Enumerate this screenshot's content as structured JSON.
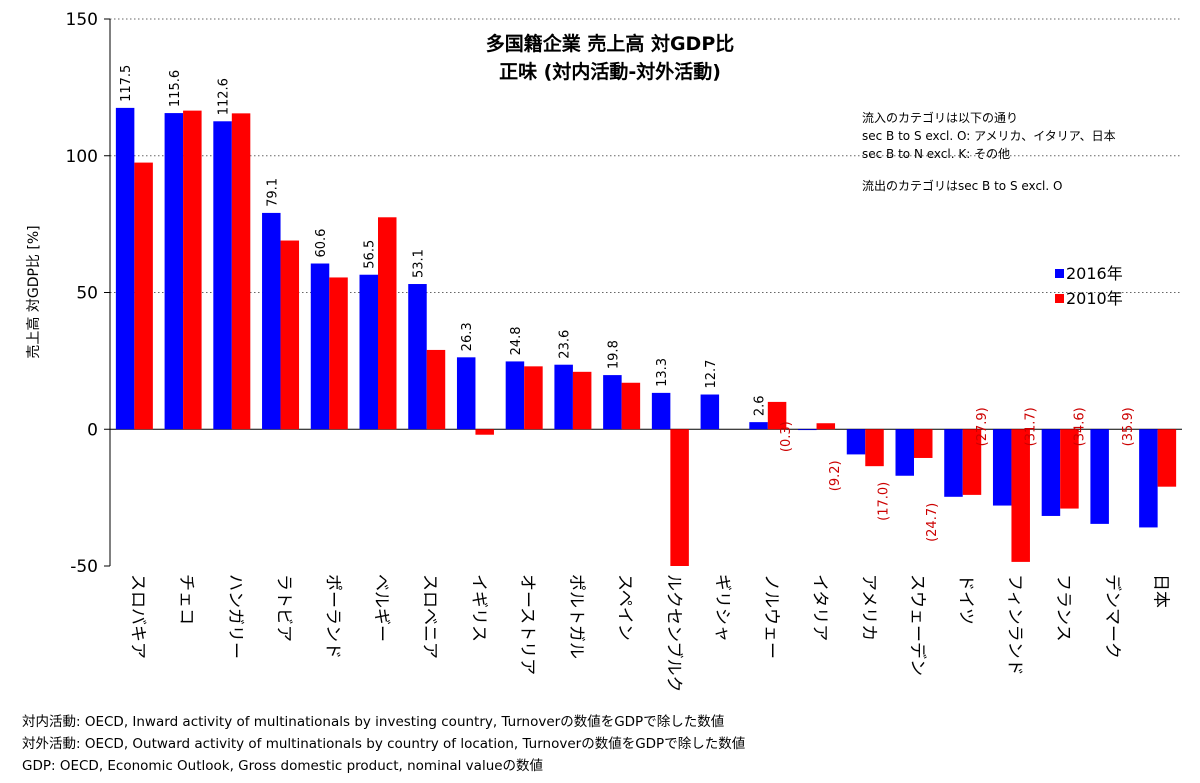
{
  "chart_data": {
    "type": "bar",
    "title": "多国籍企業 売上高 対GDP比",
    "subtitle": "正味 (対内活動-対外活動)",
    "ylabel": "売上高 対GDP比 [%]",
    "xlabel": "",
    "ylim": [
      -50,
      150
    ],
    "yticks": [
      -50,
      0,
      50,
      100,
      150
    ],
    "grid": "dotted-horizontal",
    "legend_position": "right",
    "categories": [
      "スロバキア",
      "チェコ",
      "ハンガリー",
      "ラトビア",
      "ポーランド",
      "ベルギー",
      "スロベニア",
      "イギリス",
      "オーストリア",
      "ポルトガル",
      "スペイン",
      "ルクセンブルク",
      "ギリシャ",
      "ノルウェー",
      "イタリア",
      "アメリカ",
      "スウェーデン",
      "ドイツ",
      "フィンランド",
      "フランス",
      "デンマーク",
      "日本"
    ],
    "series": [
      {
        "name": "2016年",
        "color": "#0000ff",
        "values": [
          117.5,
          115.6,
          112.6,
          79.1,
          60.6,
          56.5,
          53.1,
          26.3,
          24.8,
          23.6,
          19.8,
          13.3,
          12.7,
          2.6,
          -0.3,
          -9.2,
          -17.0,
          -24.7,
          -27.9,
          -31.7,
          -34.6,
          -35.9
        ],
        "labels": [
          "117.5",
          "115.6",
          "112.6",
          "79.1",
          "60.6",
          "56.5",
          "53.1",
          "26.3",
          "24.8",
          "23.6",
          "19.8",
          "13.3",
          "12.7",
          "2.6",
          "(0.3)",
          "(9.2)",
          "(17.0)",
          "(24.7)",
          "(27.9)",
          "(31.7)",
          "(34.6)",
          "(35.9)"
        ]
      },
      {
        "name": "2010年",
        "color": "#ff0000",
        "values": [
          97.5,
          116.5,
          115.5,
          69,
          55.5,
          77.5,
          29,
          -2,
          23,
          21,
          17,
          -50,
          null,
          10,
          2.2,
          -13.5,
          -10.5,
          -24,
          -48.5,
          -29,
          null,
          -21
        ]
      }
    ],
    "notes": [
      "流入のカテゴリは以下の通り",
      "sec B to S excl. O: アメリカ、イタリア、日本",
      "sec B to N excl. K: その他",
      "流出のカテゴリはsec B to S excl. O"
    ]
  },
  "footnotes": [
    "対内活動: OECD, Inward activity of multinationals by investing country, Turnoverの数値をGDPで除した数値",
    "対外活動: OECD, Outward activity of multinationals by country of location, Turnoverの数値をGDPで除した数値",
    "GDP: OECD, Economic Outlook, Gross domestic product, nominal valueの数値"
  ],
  "colors": {
    "positive_label": "#000000",
    "negative_label": "#cc0000"
  }
}
